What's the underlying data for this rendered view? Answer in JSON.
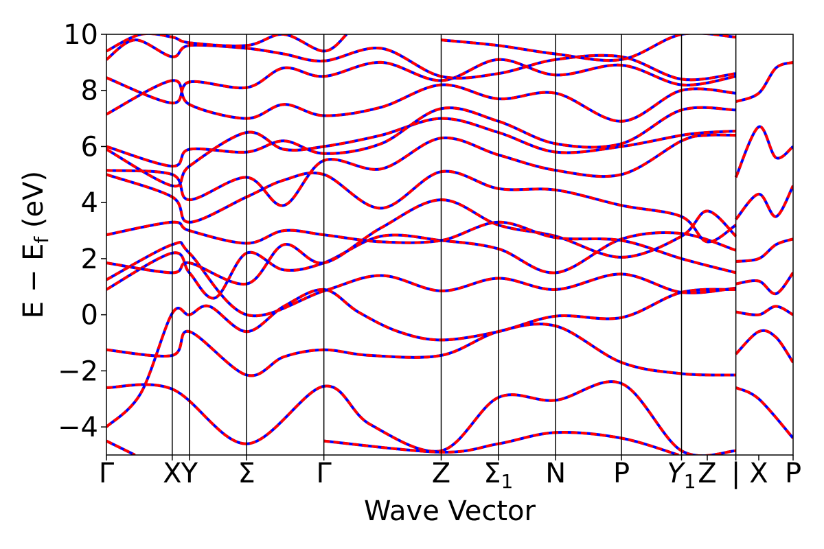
{
  "chart_data": {
    "type": "line",
    "title": "",
    "xlabel": "Wave Vector",
    "ylabel": "E − E_f (eV)",
    "ylabel_parts": {
      "main": "E − E",
      "subscript": "f",
      "unit": " (eV)"
    },
    "ylim": [
      -5,
      10
    ],
    "yticks": [
      -4,
      -2,
      0,
      2,
      4,
      6,
      8,
      10
    ],
    "ytick_labels": [
      "−4",
      "−2",
      "0",
      "2",
      "4",
      "6",
      "8",
      "10"
    ],
    "grid": false,
    "legend": "none",
    "series_colors": {
      "primary": "#ff0000",
      "overlay": "#0000ff"
    },
    "xlim": [
      0,
      12.0
    ],
    "kpoint_ticks": [
      {
        "x": 0.0,
        "label": "Γ",
        "sub": ""
      },
      {
        "x": 1.15,
        "label": "X",
        "sub": ""
      },
      {
        "x": 1.45,
        "label": "Y",
        "sub": ""
      },
      {
        "x": 2.45,
        "label": "Σ",
        "sub": ""
      },
      {
        "x": 3.8,
        "label": "Γ",
        "sub": ""
      },
      {
        "x": 5.85,
        "label": "Z",
        "sub": ""
      },
      {
        "x": 6.85,
        "label": "Σ",
        "sub": "1"
      },
      {
        "x": 7.85,
        "label": "N",
        "sub": ""
      },
      {
        "x": 9.0,
        "label": "P",
        "sub": ""
      },
      {
        "x": 10.05,
        "label": "Y",
        "sub": "1",
        "italic": true
      },
      {
        "x": 10.5,
        "label": "Z",
        "sub": ""
      },
      {
        "x": 11.0,
        "label": "|",
        "sub": ""
      },
      {
        "x": 11.4,
        "label": "X",
        "sub": ""
      },
      {
        "x": 12.0,
        "label": "P",
        "sub": ""
      }
    ],
    "segment_boundaries": [
      0.0,
      1.15,
      1.45,
      2.45,
      3.8,
      5.85,
      6.85,
      7.85,
      9.0,
      10.05,
      11.0,
      12.0
    ],
    "bands": [
      {
        "name": "",
        "points": [
          [
            0,
            -4.0
          ],
          [
            0.6,
            -2.8
          ],
          [
            1.15,
            0.05
          ],
          [
            1.45,
            0.0
          ],
          [
            1.8,
            0.3
          ],
          [
            2.45,
            -0.6
          ],
          [
            3.1,
            0.3
          ],
          [
            3.8,
            0.9
          ],
          [
            4.4,
            0.1
          ],
          [
            5.1,
            -0.6
          ],
          [
            5.85,
            -0.9
          ],
          [
            6.85,
            -0.6
          ],
          [
            7.85,
            -0.05
          ],
          [
            9.0,
            -0.1
          ],
          [
            10.05,
            0.8
          ],
          [
            11.0,
            0.9
          ]
        ]
      },
      {
        "name": "",
        "points": [
          [
            0,
            -1.25
          ],
          [
            1.15,
            -1.45
          ],
          [
            1.45,
            -0.6
          ],
          [
            2.45,
            -2.15
          ],
          [
            3.1,
            -1.5
          ],
          [
            3.8,
            -1.25
          ],
          [
            4.6,
            -1.45
          ],
          [
            5.85,
            -1.45
          ],
          [
            6.85,
            -0.6
          ],
          [
            7.85,
            -0.4
          ],
          [
            9.0,
            -1.7
          ],
          [
            10.05,
            -2.1
          ],
          [
            11.0,
            -2.15
          ]
        ]
      },
      {
        "name": "",
        "points": [
          [
            0,
            -2.6
          ],
          [
            1.15,
            -2.65
          ],
          [
            2.45,
            -4.6
          ],
          [
            3.8,
            -2.55
          ],
          [
            4.6,
            -3.9
          ],
          [
            5.85,
            -4.85
          ],
          [
            6.85,
            -2.95
          ],
          [
            7.85,
            -3.05
          ],
          [
            9.0,
            -2.45
          ],
          [
            10.05,
            -4.85
          ],
          [
            11.0,
            -4.85
          ]
        ]
      },
      {
        "name": "",
        "points": [
          [
            0,
            -4.5
          ],
          [
            0.5,
            -5.0
          ]
        ]
      },
      {
        "name": "",
        "points": [
          [
            3.8,
            -4.5
          ],
          [
            5.85,
            -4.9
          ],
          [
            6.85,
            -4.6
          ],
          [
            7.85,
            -4.2
          ],
          [
            9.0,
            -4.4
          ],
          [
            10.0,
            -5.0
          ]
        ]
      },
      {
        "name": "",
        "points": [
          [
            0,
            0.9
          ],
          [
            1.15,
            2.2
          ],
          [
            1.45,
            1.5
          ],
          [
            1.9,
            0.6
          ],
          [
            2.45,
            2.2
          ],
          [
            3.1,
            1.6
          ],
          [
            3.8,
            1.85
          ],
          [
            4.8,
            2.8
          ],
          [
            5.85,
            2.65
          ],
          [
            6.85,
            2.35
          ],
          [
            7.85,
            1.5
          ],
          [
            9.0,
            2.7
          ],
          [
            10.05,
            2.9
          ],
          [
            11.0,
            2.3
          ]
        ]
      },
      {
        "name": "",
        "points": [
          [
            0,
            1.25
          ],
          [
            1.15,
            2.5
          ],
          [
            1.45,
            2.2
          ],
          [
            2.45,
            0.0
          ],
          [
            3.8,
            0.85
          ],
          [
            4.8,
            1.4
          ],
          [
            5.85,
            0.85
          ],
          [
            6.85,
            1.3
          ],
          [
            7.85,
            0.9
          ],
          [
            9.0,
            1.45
          ],
          [
            10.05,
            0.8
          ],
          [
            11.0,
            0.95
          ]
        ]
      },
      {
        "name": "",
        "points": [
          [
            0,
            1.85
          ],
          [
            1.15,
            1.5
          ],
          [
            1.45,
            1.85
          ],
          [
            2.45,
            1.1
          ],
          [
            3.1,
            2.5
          ],
          [
            3.8,
            1.85
          ],
          [
            4.8,
            3.1
          ],
          [
            5.85,
            4.1
          ],
          [
            6.85,
            3.2
          ],
          [
            7.85,
            2.8
          ],
          [
            9.0,
            2.05
          ],
          [
            10.05,
            2.8
          ],
          [
            10.5,
            3.7
          ],
          [
            11.0,
            2.8
          ]
        ]
      },
      {
        "name": "",
        "points": [
          [
            0,
            2.85
          ],
          [
            1.15,
            3.3
          ],
          [
            1.45,
            3.0
          ],
          [
            2.45,
            2.55
          ],
          [
            3.1,
            3.0
          ],
          [
            3.8,
            2.85
          ],
          [
            4.8,
            2.6
          ],
          [
            5.85,
            2.65
          ],
          [
            6.85,
            3.3
          ],
          [
            7.85,
            2.75
          ],
          [
            9.0,
            2.65
          ],
          [
            10.05,
            2.0
          ],
          [
            11.0,
            1.5
          ]
        ]
      },
      {
        "name": "",
        "points": [
          [
            0,
            5.0
          ],
          [
            1.15,
            4.2
          ],
          [
            1.45,
            3.3
          ],
          [
            2.45,
            4.2
          ],
          [
            3.1,
            4.8
          ],
          [
            3.8,
            5.0
          ],
          [
            4.8,
            3.8
          ],
          [
            5.85,
            5.1
          ],
          [
            6.85,
            4.5
          ],
          [
            7.85,
            4.45
          ],
          [
            9.0,
            3.9
          ],
          [
            10.05,
            3.5
          ],
          [
            10.5,
            2.6
          ],
          [
            11.0,
            3.2
          ]
        ]
      },
      {
        "name": "",
        "points": [
          [
            0,
            5.15
          ],
          [
            1.15,
            5.0
          ],
          [
            1.45,
            4.1
          ],
          [
            2.45,
            4.9
          ],
          [
            3.1,
            3.9
          ],
          [
            3.8,
            5.5
          ],
          [
            4.8,
            5.2
          ],
          [
            5.85,
            6.3
          ],
          [
            6.85,
            5.7
          ],
          [
            7.85,
            5.15
          ],
          [
            9.0,
            5.0
          ],
          [
            10.05,
            6.2
          ],
          [
            10.5,
            6.4
          ],
          [
            11.0,
            6.4
          ]
        ]
      },
      {
        "name": "",
        "points": [
          [
            0,
            5.9
          ],
          [
            1.15,
            4.6
          ],
          [
            1.45,
            5.3
          ],
          [
            2.45,
            6.5
          ],
          [
            3.1,
            5.9
          ],
          [
            3.8,
            6.0
          ],
          [
            4.8,
            6.4
          ],
          [
            5.85,
            7.0
          ],
          [
            6.85,
            6.5
          ],
          [
            7.85,
            5.8
          ],
          [
            9.0,
            6.0
          ],
          [
            10.05,
            6.4
          ],
          [
            10.5,
            6.5
          ],
          [
            11.0,
            6.55
          ]
        ]
      },
      {
        "name": "",
        "points": [
          [
            0,
            6.0
          ],
          [
            1.15,
            5.3
          ],
          [
            1.45,
            5.9
          ],
          [
            2.45,
            5.8
          ],
          [
            3.1,
            6.2
          ],
          [
            3.8,
            5.75
          ],
          [
            4.8,
            6.1
          ],
          [
            5.85,
            7.35
          ],
          [
            6.85,
            6.9
          ],
          [
            7.85,
            6.1
          ],
          [
            9.0,
            6.1
          ],
          [
            10.05,
            7.3
          ],
          [
            11.0,
            7.3
          ]
        ]
      },
      {
        "name": "",
        "points": [
          [
            0,
            7.15
          ],
          [
            1.15,
            8.35
          ],
          [
            1.45,
            7.5
          ],
          [
            2.45,
            7.0
          ],
          [
            3.1,
            7.5
          ],
          [
            3.8,
            7.1
          ],
          [
            4.8,
            7.4
          ],
          [
            5.85,
            8.2
          ],
          [
            6.85,
            7.7
          ],
          [
            7.85,
            7.9
          ],
          [
            9.0,
            6.9
          ],
          [
            10.05,
            8.0
          ],
          [
            11.0,
            7.9
          ]
        ]
      },
      {
        "name": "",
        "points": [
          [
            0,
            8.45
          ],
          [
            1.15,
            7.55
          ],
          [
            1.45,
            8.3
          ],
          [
            2.45,
            8.1
          ],
          [
            3.1,
            8.8
          ],
          [
            3.8,
            8.5
          ],
          [
            4.8,
            9.0
          ],
          [
            5.85,
            8.35
          ],
          [
            6.85,
            9.1
          ],
          [
            7.85,
            8.55
          ],
          [
            9.0,
            8.9
          ],
          [
            10.05,
            8.2
          ],
          [
            11.0,
            8.5
          ]
        ]
      },
      {
        "name": "",
        "points": [
          [
            0,
            9.1
          ],
          [
            0.5,
            9.8
          ],
          [
            1.15,
            9.2
          ],
          [
            1.45,
            9.6
          ],
          [
            2.45,
            9.5
          ],
          [
            3.1,
            9.3
          ],
          [
            3.8,
            9.05
          ],
          [
            4.8,
            9.5
          ],
          [
            5.85,
            8.5
          ],
          [
            6.85,
            8.6
          ],
          [
            7.85,
            9.1
          ],
          [
            9.0,
            9.2
          ],
          [
            10.05,
            8.4
          ],
          [
            11.0,
            8.6
          ]
        ]
      },
      {
        "name": "",
        "points": [
          [
            0,
            9.4
          ],
          [
            0.6,
            10.0
          ],
          [
            1.15,
            9.9
          ],
          [
            1.45,
            9.7
          ],
          [
            2.45,
            9.6
          ],
          [
            3.1,
            10.0
          ],
          [
            3.8,
            9.4
          ],
          [
            4.2,
            10.0
          ]
        ]
      },
      {
        "name": "",
        "points": [
          [
            5.85,
            9.8
          ],
          [
            6.85,
            9.6
          ],
          [
            7.85,
            9.3
          ],
          [
            9.0,
            9.1
          ],
          [
            10.05,
            10.0
          ],
          [
            11.0,
            9.9
          ]
        ]
      },
      {
        "name": "",
        "points": [
          [
            11.0,
            0.1
          ],
          [
            11.4,
            0.0
          ],
          [
            11.7,
            0.3
          ],
          [
            12.0,
            0.0
          ]
        ]
      },
      {
        "name": "",
        "points": [
          [
            11.0,
            -1.4
          ],
          [
            11.4,
            -0.6
          ],
          [
            11.7,
            -0.8
          ],
          [
            12.0,
            -1.7
          ]
        ]
      },
      {
        "name": "",
        "points": [
          [
            11.0,
            -2.6
          ],
          [
            11.4,
            -3.0
          ],
          [
            12.0,
            -4.4
          ]
        ]
      },
      {
        "name": "",
        "points": [
          [
            11.0,
            1.1
          ],
          [
            11.4,
            1.2
          ],
          [
            11.7,
            0.75
          ],
          [
            12.0,
            1.5
          ]
        ]
      },
      {
        "name": "",
        "points": [
          [
            11.0,
            1.9
          ],
          [
            11.4,
            2.0
          ],
          [
            11.7,
            2.5
          ],
          [
            12.0,
            2.7
          ]
        ]
      },
      {
        "name": "",
        "points": [
          [
            11.0,
            3.4
          ],
          [
            11.4,
            4.3
          ],
          [
            11.7,
            3.5
          ],
          [
            12.0,
            4.6
          ]
        ]
      },
      {
        "name": "",
        "points": [
          [
            11.0,
            4.9
          ],
          [
            11.4,
            6.7
          ],
          [
            11.7,
            5.6
          ],
          [
            12.0,
            6.0
          ]
        ]
      },
      {
        "name": "",
        "points": [
          [
            11.0,
            7.6
          ],
          [
            11.4,
            7.9
          ],
          [
            11.7,
            8.8
          ],
          [
            12.0,
            9.0
          ]
        ]
      }
    ]
  }
}
